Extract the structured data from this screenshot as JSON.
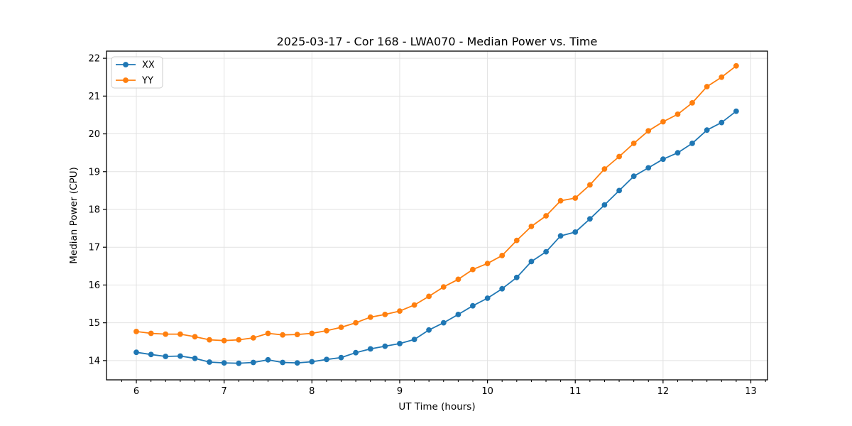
{
  "chart_data": {
    "type": "line",
    "title": "2025-03-17 - Cor 168 - LWA070 - Median Power vs. Time",
    "xlabel": "UT Time (hours)",
    "ylabel": "Median Power (CPU)",
    "xlim": [
      5.66,
      13.19
    ],
    "ylim": [
      13.49,
      22.19
    ],
    "xticks": [
      6,
      7,
      8,
      9,
      10,
      11,
      12,
      13
    ],
    "yticks": [
      14,
      15,
      16,
      17,
      18,
      19,
      20,
      21,
      22
    ],
    "x_minor_step": 0.166667,
    "grid": true,
    "legend": {
      "location": "upper left"
    },
    "x": [
      6.0,
      6.167,
      6.333,
      6.5,
      6.667,
      6.833,
      7.0,
      7.167,
      7.333,
      7.5,
      7.667,
      7.833,
      8.0,
      8.167,
      8.333,
      8.5,
      8.667,
      8.833,
      9.0,
      9.167,
      9.333,
      9.5,
      9.667,
      9.833,
      10.0,
      10.167,
      10.333,
      10.5,
      10.667,
      10.833,
      11.0,
      11.167,
      11.333,
      11.5,
      11.667,
      11.833,
      12.0,
      12.167,
      12.333,
      12.5,
      12.667,
      12.833
    ],
    "series": [
      {
        "name": "XX",
        "color": "#1f77b4",
        "marker": "circle",
        "values": [
          14.22,
          14.16,
          14.11,
          14.12,
          14.06,
          13.96,
          13.94,
          13.93,
          13.95,
          14.02,
          13.95,
          13.94,
          13.97,
          14.03,
          14.08,
          14.21,
          14.31,
          14.38,
          14.45,
          14.56,
          14.81,
          15.0,
          15.22,
          15.45,
          15.65,
          15.9,
          16.2,
          16.62,
          16.88,
          17.3,
          17.4,
          17.75,
          18.12,
          18.5,
          18.88,
          19.1,
          19.33,
          19.5,
          19.75,
          20.1,
          20.3,
          20.6
        ]
      },
      {
        "name": "YY",
        "color": "#ff7f0e",
        "marker": "circle",
        "values": [
          14.77,
          14.72,
          14.7,
          14.7,
          14.63,
          14.55,
          14.53,
          14.55,
          14.6,
          14.72,
          14.68,
          14.69,
          14.72,
          14.79,
          14.88,
          15.0,
          15.15,
          15.22,
          15.31,
          15.47,
          15.7,
          15.95,
          16.15,
          16.41,
          16.57,
          16.78,
          17.18,
          17.55,
          17.83,
          18.23,
          18.3,
          18.65,
          19.07,
          19.4,
          19.75,
          20.08,
          20.32,
          20.52,
          20.82,
          21.25,
          21.5,
          21.8
        ]
      }
    ],
    "colors": {
      "background": "#ffffff",
      "grid": "#e2e2e2",
      "spine": "#000000",
      "tick": "#000000"
    }
  }
}
